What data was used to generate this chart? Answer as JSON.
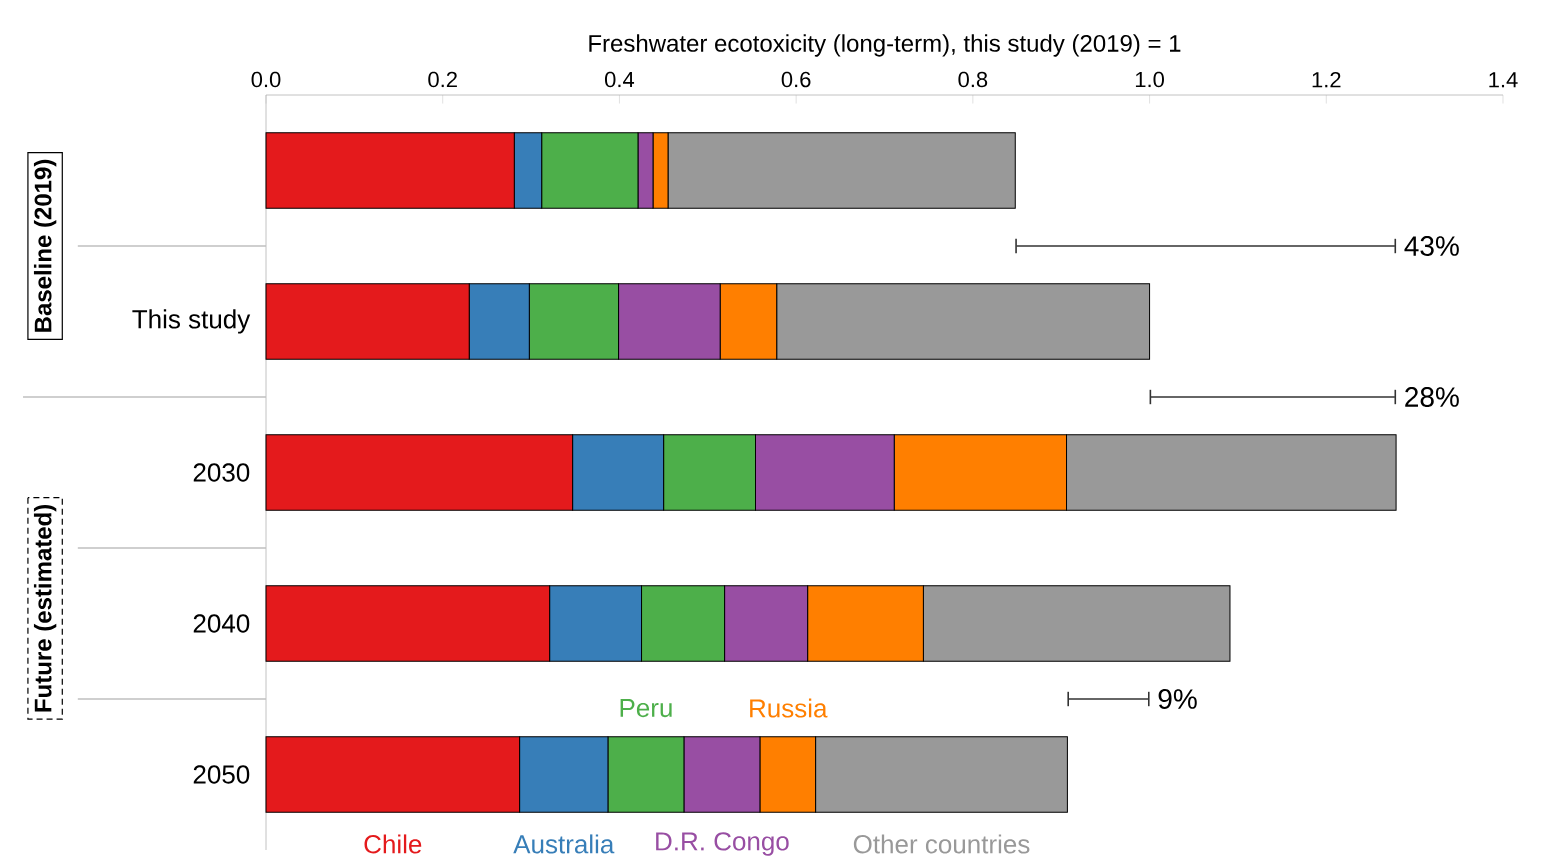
{
  "chart_data": {
    "type": "bar",
    "orientation": "horizontal",
    "stacked": true,
    "xlabel": "Freshwater ecotoxicity (long-term), this study (2019) = 1",
    "categories": [
      null,
      "This study",
      "2030",
      "2040",
      "2050"
    ],
    "series": [
      {
        "name": "Chile",
        "color": "#e41a1c",
        "values": [
          0.281,
          0.23,
          0.347,
          0.321,
          0.287
        ]
      },
      {
        "name": "Australia",
        "color": "#377eb8",
        "values": [
          0.031,
          0.068,
          0.103,
          0.104,
          0.1
        ]
      },
      {
        "name": "Peru",
        "color": "#4daf4a",
        "values": [
          0.109,
          0.101,
          0.104,
          0.094,
          0.086
        ]
      },
      {
        "name": "D.R. Congo",
        "color": "#984ea3",
        "values": [
          0.017,
          0.115,
          0.157,
          0.094,
          0.086
        ]
      },
      {
        "name": "Russia",
        "color": "#ff7f00",
        "values": [
          0.017,
          0.064,
          0.195,
          0.131,
          0.063
        ]
      },
      {
        "name": "Other countries",
        "color": "#999999",
        "values": [
          0.393,
          0.422,
          0.373,
          0.347,
          0.285
        ]
      }
    ],
    "xlim": [
      0,
      1.4
    ],
    "xticks": [
      {
        "value": 0,
        "label": "0.0"
      },
      0.2,
      0.4,
      0.6,
      0.8,
      {
        "value": 1.0,
        "label": "1.0"
      },
      1.2,
      1.4
    ],
    "legend": "bottom",
    "grid": false,
    "annotations": [
      "43%",
      "28%",
      "9%",
      "Baseline (2019)",
      "Future (estimated)"
    ]
  }
}
